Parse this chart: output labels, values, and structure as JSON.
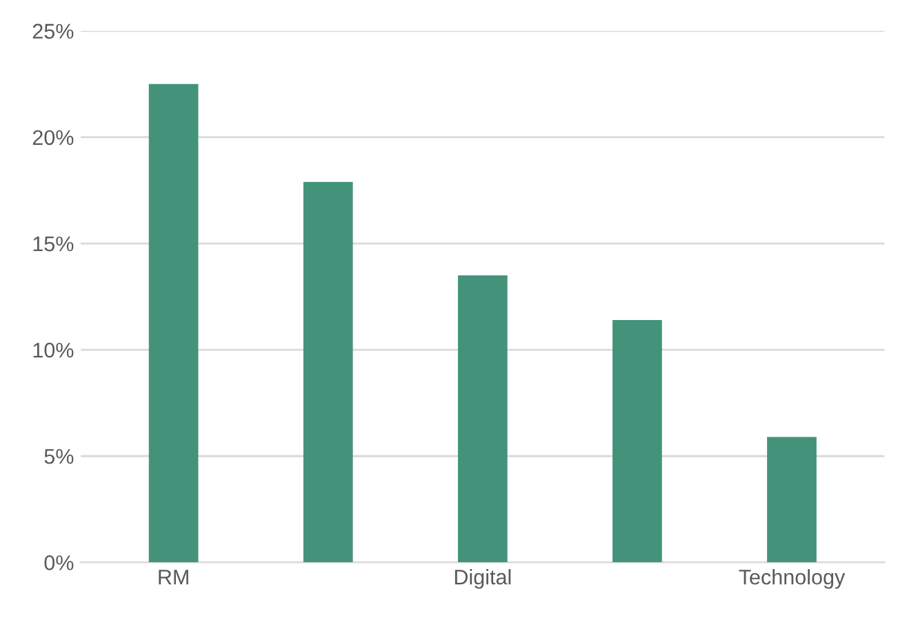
{
  "chart_data": {
    "type": "bar",
    "categories": [
      "RM",
      null,
      "Digital",
      null,
      "Technology"
    ],
    "values": [
      22.5,
      17.9,
      13.5,
      11.4,
      5.9
    ],
    "color": "#43937a",
    "ylim": [
      0,
      25
    ],
    "yticks": [
      {
        "value": 0,
        "label": "0%"
      },
      {
        "value": 5,
        "label": "5%"
      },
      {
        "value": 10,
        "label": "10%"
      },
      {
        "value": 15,
        "label": "15%"
      },
      {
        "value": 20,
        "label": "20%"
      },
      {
        "value": 25,
        "label": "25%"
      }
    ],
    "grid": "y"
  }
}
